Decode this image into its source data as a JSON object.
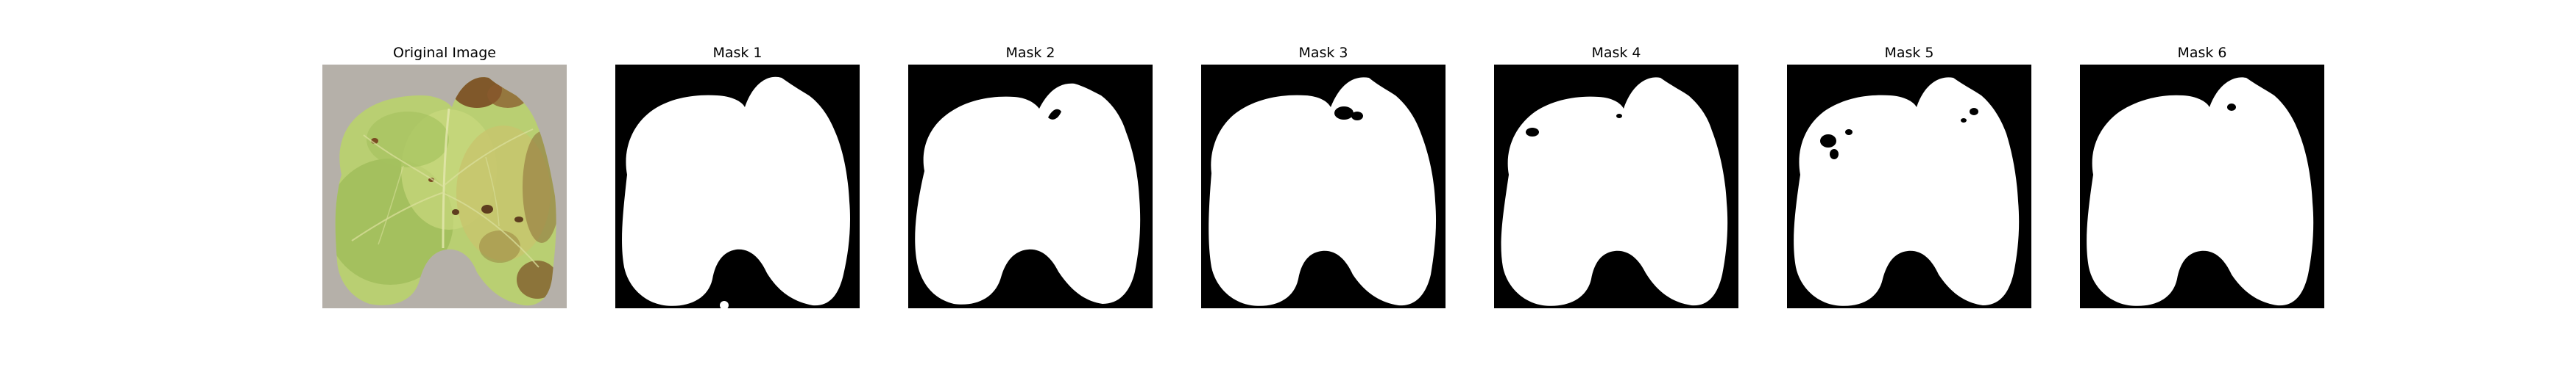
{
  "figure": {
    "panels": [
      {
        "title": "Original Image",
        "kind": "photo"
      },
      {
        "title": "Mask 1",
        "kind": "mask"
      },
      {
        "title": "Mask 2",
        "kind": "mask"
      },
      {
        "title": "Mask 3",
        "kind": "mask"
      },
      {
        "title": "Mask 4",
        "kind": "mask"
      },
      {
        "title": "Mask 5",
        "kind": "mask"
      },
      {
        "title": "Mask 6",
        "kind": "mask"
      }
    ],
    "colors": {
      "mask_background": "#000000",
      "mask_foreground": "#ffffff",
      "photo_background": "#b9b5ae",
      "leaf_light": "#b9cf72",
      "leaf_mid": "#97b25a",
      "leaf_dark": "#6d8d3f",
      "leaf_yellow": "#c8c46d",
      "lesion_brown": "#7a4a22"
    }
  }
}
